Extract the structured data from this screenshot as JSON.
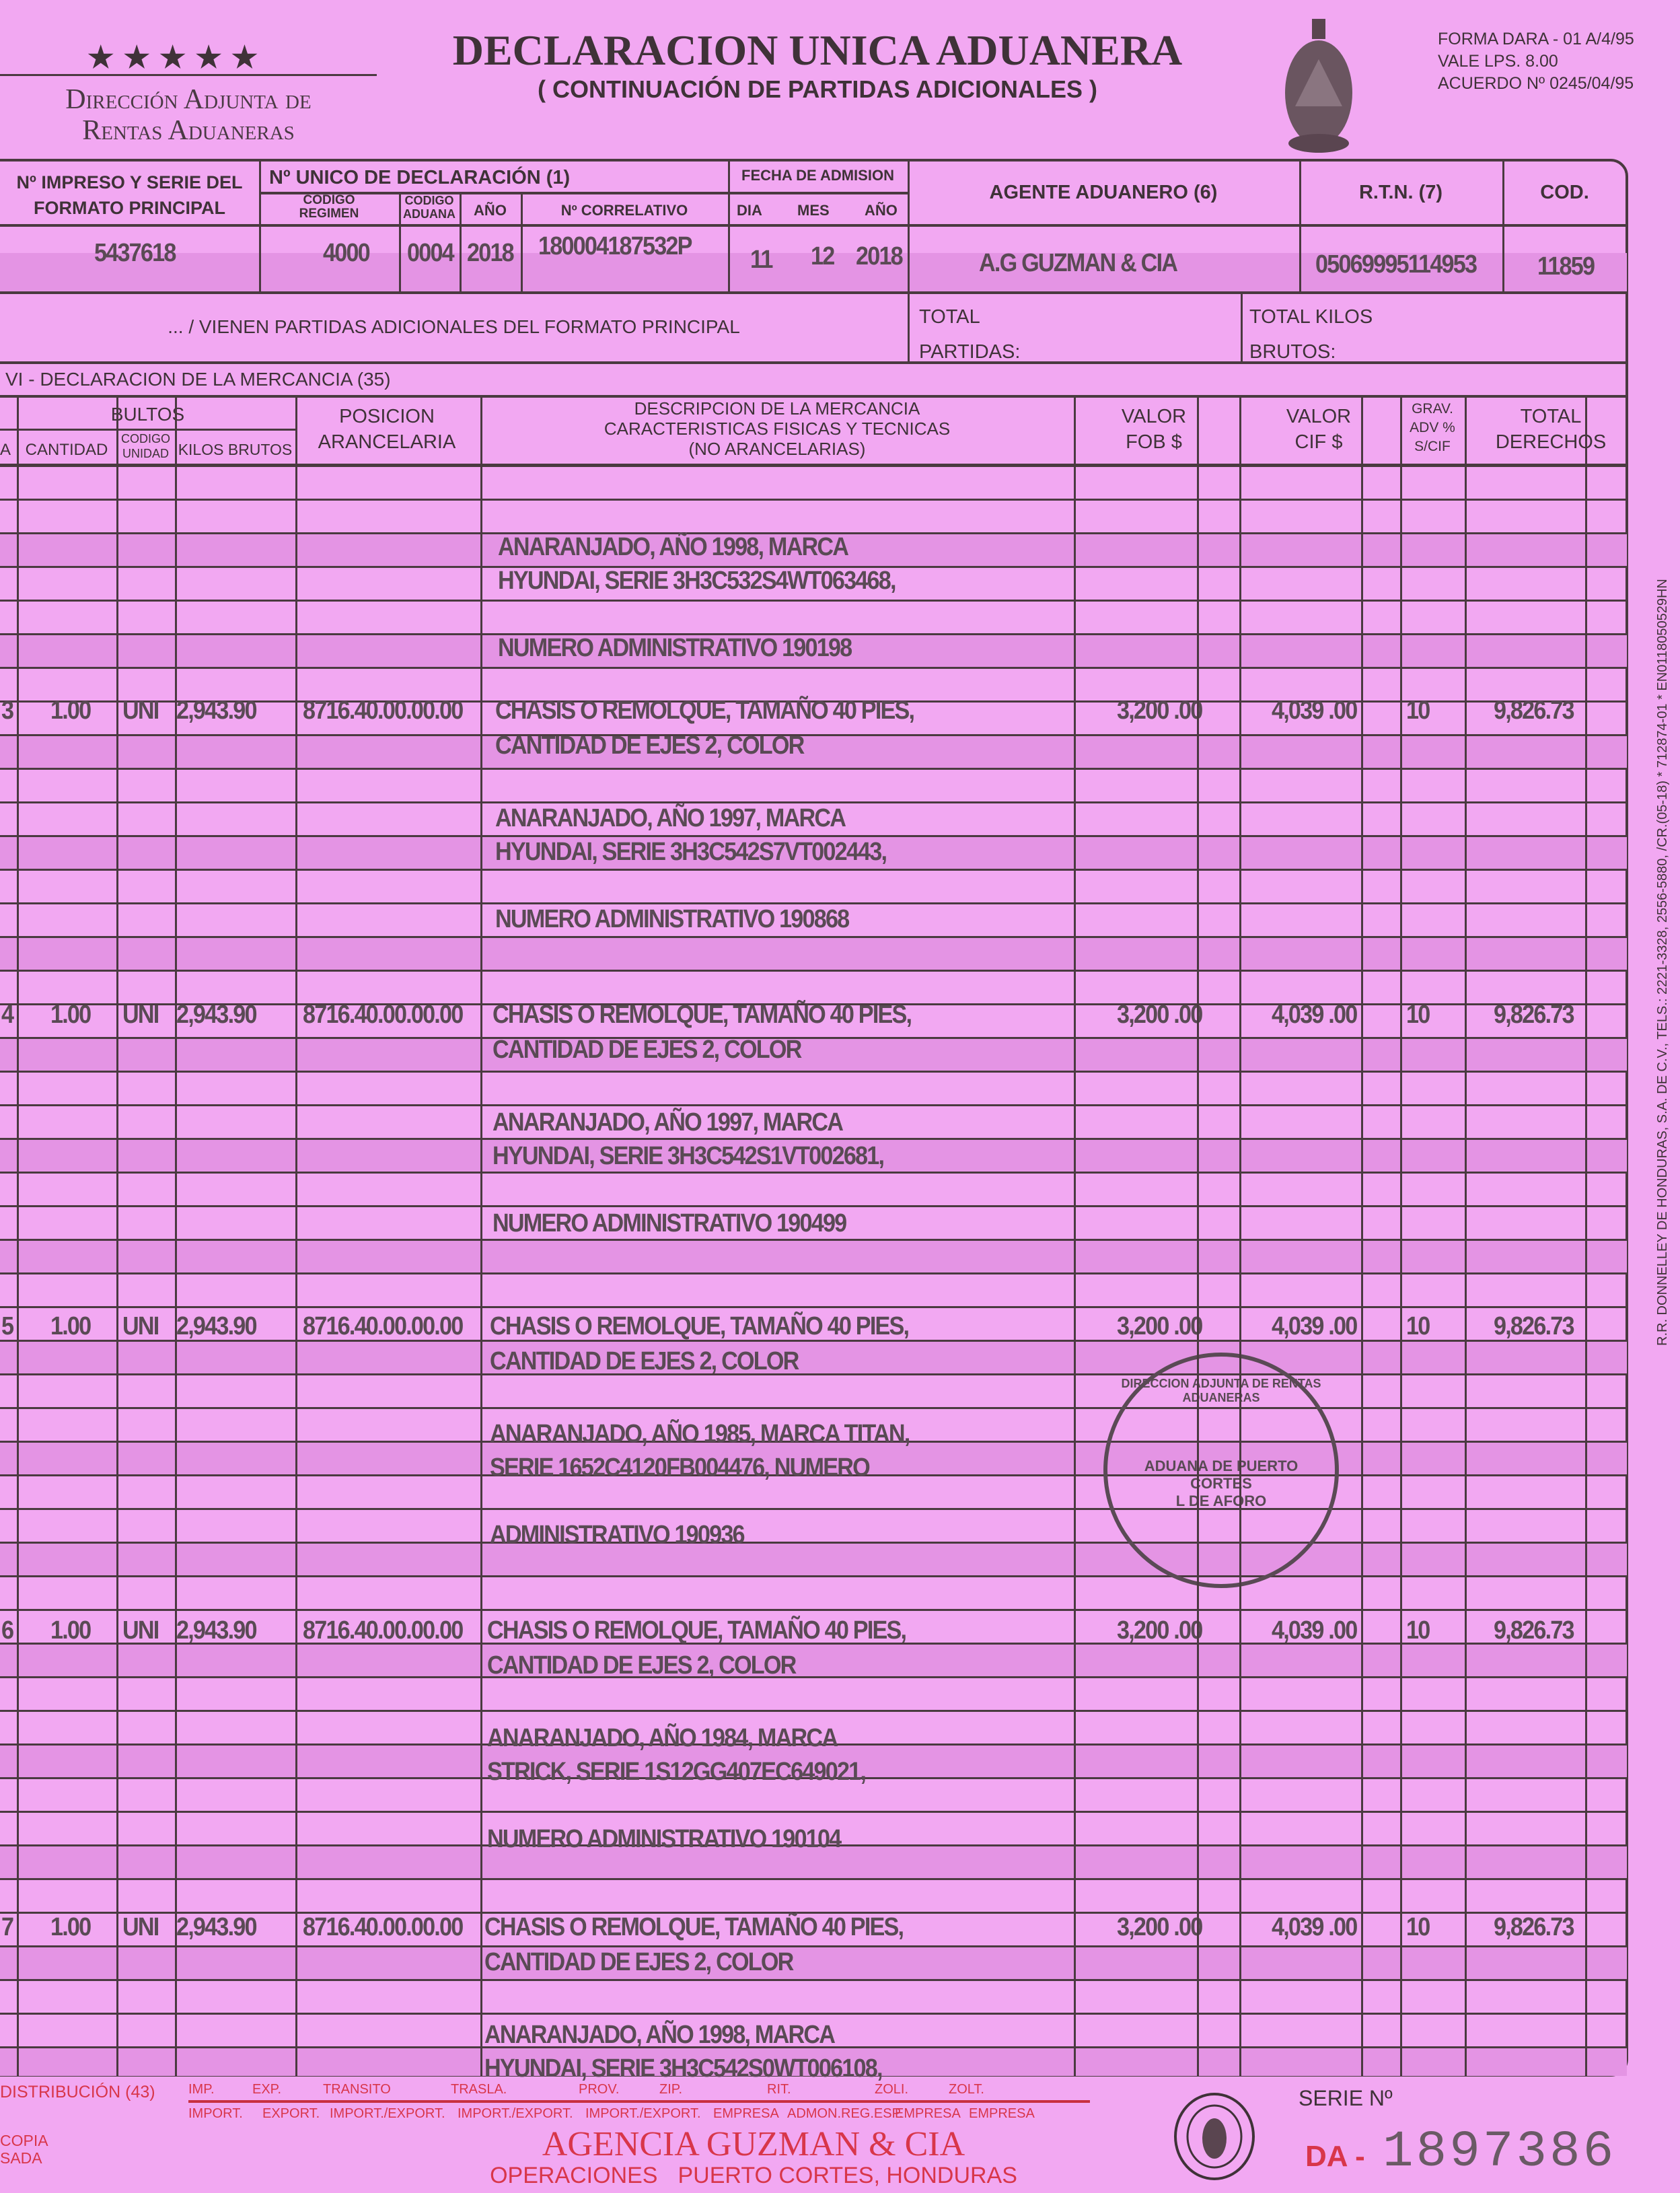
{
  "header": {
    "title": "DECLARACION UNICA ADUANERA",
    "subtitle": "( CONTINUACIÓN DE PARTIDAS ADICIONALES )",
    "agency_line1": "Dirección Adjunta de",
    "agency_line2": "Rentas Aduaneras",
    "form_line1": "FORMA DARA - 01 A/4/95",
    "form_line2": "VALE LPS. 8.00",
    "form_line3": "ACUERDO Nº 0245/04/95",
    "seal_icon": "honduras-coat-of-arms"
  },
  "top": {
    "impreso_label": "Nº IMPRESO Y SERIE DEL FORMATO PRINCIPAL",
    "unico_label": "Nº UNICO DE DECLARACIÓN (1)",
    "codigo_regimen_label": "CODIGO REGIMEN",
    "codigo_aduana_label": "CODIGO ADUANA",
    "anio_label": "AÑO",
    "correlativo_label": "Nº CORRELATIVO",
    "fecha_label": "FECHA DE ADMISION",
    "dia_label": "DIA",
    "mes_label": "MES",
    "anio2_label": "AÑO",
    "agente_label": "AGENTE ADUANERO (6)",
    "rtn_label": "R.T.N. (7)",
    "cod_label": "COD.",
    "impreso": "5437618",
    "codigo_regimen": "4000",
    "codigo_aduana": "0004",
    "anio": "2018",
    "correlativo": "180004187532P",
    "dia": "11",
    "mes": "12",
    "anio2": "2018",
    "agente": "A.G GUZMAN & CIA",
    "rtn": "05069995114953",
    "cod": "11859"
  },
  "section2": {
    "vienen": "... / VIENEN PARTIDAS ADICIONALES DEL FORMATO PRINCIPAL",
    "total_partidas": "TOTAL PARTIDAS:",
    "total_kilos": "TOTAL KILOS BRUTOS:"
  },
  "section_title": "VI - DECLARACION DE LA MERCANCIA (35)",
  "columns": {
    "bultos": "BULTOS",
    "a": "A",
    "cantidad": "CANTIDAD",
    "codigo_unidad": "CODIGO UNIDAD",
    "kilos": "KILOS BRUTOS",
    "posicion": "POSICION ARANCELARIA",
    "descripcion": "DESCRIPCION DE LA MERCANCIA CARACTERISTICAS FISICAS Y TECNICAS (NO ARANCELARIAS)",
    "fob": "VALOR FOB $",
    "cif": "VALOR CIF $",
    "grav": "GRAV. ADV % S/CIF",
    "total": "TOTAL DERECHOS"
  },
  "items": [
    {
      "no": "",
      "cantidad": "",
      "unidad": "",
      "kilos": "",
      "posicion": "",
      "fob": "",
      "cif": "",
      "grav": "",
      "total": "",
      "desc": [
        "",
        "",
        "ANARANJADO, AÑO 1998, MARCA",
        "HYUNDAI, SERIE 3H3C532S4WT063468,",
        "NUMERO ADMINISTRATIVO 190198"
      ]
    },
    {
      "no": "3",
      "cantidad": "1.00",
      "unidad": "UNI",
      "kilos": "2,943.90",
      "posicion": "8716.40.00.00.00",
      "fob": "3,200 .00",
      "cif": "4,039 .00",
      "grav": "10",
      "total": "9,826.73",
      "desc": [
        "CHASIS  O REMOLQUE, TAMAÑO 40 PIES,",
        "CANTIDAD DE EJES 2, COLOR",
        "ANARANJADO, AÑO 1997, MARCA",
        "HYUNDAI, SERIE 3H3C542S7VT002443,",
        "NUMERO ADMINISTRATIVO 190868"
      ]
    },
    {
      "no": "4",
      "cantidad": "1.00",
      "unidad": "UNI",
      "kilos": "2,943.90",
      "posicion": "8716.40.00.00.00",
      "fob": "3,200 .00",
      "cif": "4,039 .00",
      "grav": "10",
      "total": "9,826.73",
      "desc": [
        "CHASIS  O REMOLQUE, TAMAÑO 40 PIES,",
        "CANTIDAD DE EJES 2, COLOR",
        "ANARANJADO, AÑO 1997, MARCA",
        "HYUNDAI, SERIE 3H3C542S1VT002681,",
        "NUMERO ADMINISTRATIVO 190499"
      ]
    },
    {
      "no": "5",
      "cantidad": "1.00",
      "unidad": "UNI",
      "kilos": "2,943.90",
      "posicion": "8716.40.00.00.00",
      "fob": "3,200 .00",
      "cif": "4,039 .00",
      "grav": "10",
      "total": "9,826.73",
      "desc": [
        "CHASIS  O REMOLQUE, TAMAÑO 40 PIES,",
        "CANTIDAD DE EJES 2, COLOR",
        "ANARANJADO, AÑO 1985, MARCA TITAN,",
        "SERIE 1652C4120FB004476, NUMERO",
        "ADMINISTRATIVO 190936"
      ]
    },
    {
      "no": "6",
      "cantidad": "1.00",
      "unidad": "UNI",
      "kilos": "2,943.90",
      "posicion": "8716.40.00.00.00",
      "fob": "3,200 .00",
      "cif": "4,039 .00",
      "grav": "10",
      "total": "9,826.73",
      "desc": [
        "CHASIS  O REMOLQUE, TAMAÑO 40 PIES,",
        "CANTIDAD DE EJES 2, COLOR",
        "ANARANJADO, AÑO 1984, MARCA",
        "STRICK, SERIE 1S12GG407EC649021,",
        "NUMERO ADMINISTRATIVO 190104"
      ]
    },
    {
      "no": "7",
      "cantidad": "1.00",
      "unidad": "UNI",
      "kilos": "2,943.90",
      "posicion": "8716.40.00.00.00",
      "fob": "3,200 .00",
      "cif": "4,039 .00",
      "grav": "10",
      "total": "9,826.73",
      "desc": [
        "CHASIS  O REMOLQUE, TAMAÑO 40 PIES,",
        "CANTIDAD DE EJES 2, COLOR",
        "ANARANJADO, AÑO 1998, MARCA",
        "HYUNDAI, SERIE 3H3C542S0WT006108,",
        ""
      ]
    }
  ],
  "stamp": {
    "ring": "DIRECCION ADJUNTA DE RENTAS ADUANERAS",
    "center1": "ADUANA DE PUERTO",
    "center2": "CORTES",
    "center3": "L DE AFORO"
  },
  "side_text": "R.R. DONNELLEY DE HONDURAS, S.A. DE C.V., TELS.: 2221-3328, 2556-5880, /CR.(05-18) * 712874-01 * EN0118050529HN",
  "footer": {
    "distribucion": "DISTRIBUCIÓN (43)",
    "copia": "COPIA",
    "sada": "SADA",
    "top_labels": [
      "IMP.",
      "EXP.",
      "TRANSITO",
      "TRASLA.",
      "PROV.",
      "ZIP.",
      "RIT.",
      "ZOLI.",
      "ZOLT."
    ],
    "bottom_labels": [
      "IMPORT.",
      "EXPORT.",
      "IMPORT./EXPORT.",
      "IMPORT./EXPORT.",
      "IMPORT./EXPORT.",
      "EMPRESA",
      "ADMON.REG.ESP.",
      "EMPRESA",
      "EMPRESA"
    ],
    "agency_stamp1": "AGENCIA GUZMAN & CIA",
    "agency_stamp2": "OPERACIONES",
    "agency_stamp3": "PUERTO CORTES, HONDURAS",
    "contraloria_seal": "CONTRALORIA GENERAL DE LA REPUBLICA - HONDURAS",
    "serie_label": "SERIE Nº",
    "serie_prefix": "DA -",
    "serie_number": "1897386"
  },
  "colors": {
    "paper": "#f2a8f2",
    "ink": "#4a3a40",
    "red": "#d8364a"
  }
}
